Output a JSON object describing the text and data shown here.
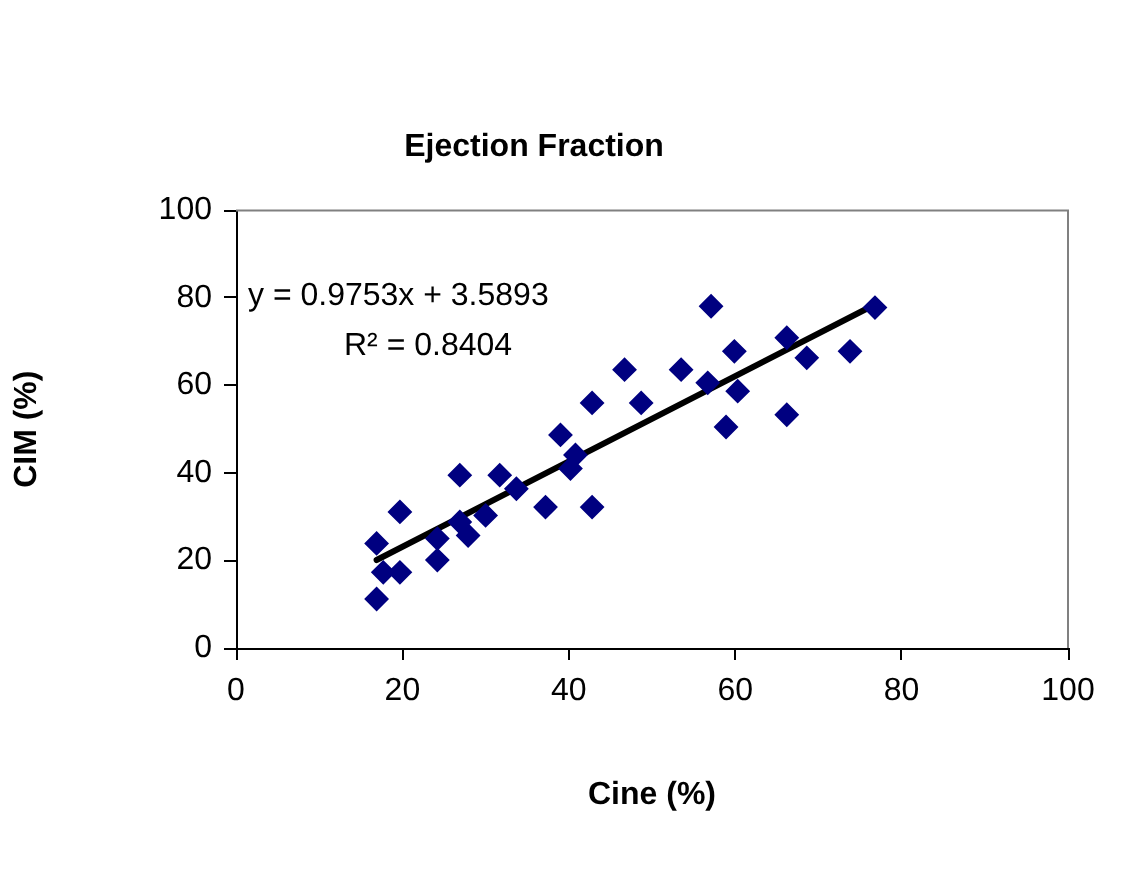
{
  "chart_data": {
    "type": "scatter",
    "title": "Ejection Fraction",
    "xlabel": "Cine (%)",
    "ylabel": "CIM (%)",
    "xlim": [
      0,
      100
    ],
    "xticks": [
      0,
      20,
      40,
      60,
      80,
      100
    ],
    "ylim": [
      0,
      100
    ],
    "yticks": [
      0,
      20,
      40,
      60,
      80,
      100
    ],
    "grid": false,
    "legend": false,
    "marker": "diamond",
    "series": [
      {
        "type": "scatter",
        "color": "#000080",
        "x": [
          16.9,
          17.7,
          16.9,
          19.7,
          19.7,
          24.2,
          24.2,
          26.9,
          26.9,
          27.9,
          30.0,
          31.7,
          33.7,
          37.2,
          39.0,
          40.2,
          40.8,
          42.8,
          42.8,
          46.7,
          48.7,
          53.5,
          57.1,
          56.7,
          58.9,
          59.9,
          60.3,
          66.2,
          66.2,
          68.6,
          73.8,
          76.8
        ],
        "values": [
          23.9,
          17.3,
          11.2,
          17.3,
          31.1,
          25.0,
          20.1,
          39.5,
          28.8,
          25.7,
          30.3,
          39.5,
          36.4,
          32.2,
          48.7,
          41.0,
          44.1,
          32.2,
          56.0,
          63.6,
          56.0,
          63.6,
          78.1,
          60.6,
          50.5,
          67.8,
          58.7,
          53.3,
          70.9,
          66.3,
          67.8,
          77.8
        ]
      },
      {
        "type": "line",
        "color": "#000000",
        "marker": "none",
        "x": [
          16.9,
          76.8
        ],
        "values": [
          20.1,
          78.5
        ]
      }
    ],
    "annotations": [
      "y = 0.9753x + 3.5893",
      "R² = 0.8404"
    ]
  }
}
